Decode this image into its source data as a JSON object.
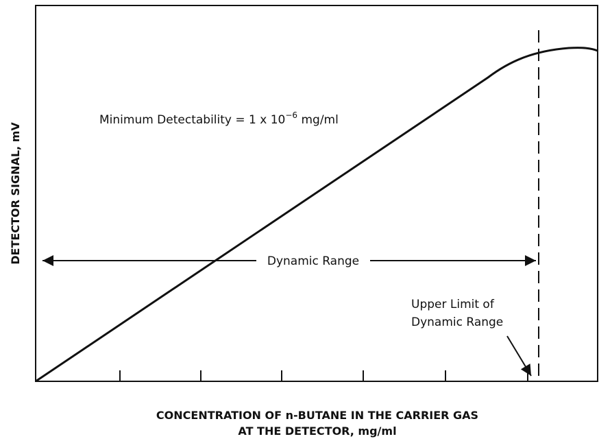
{
  "axes": {
    "y_label": "DETECTOR SIGNAL, mV",
    "x_label": [
      "CONCENTRATION OF n-BUTANE IN THE CARRIER GAS",
      "AT THE DETECTOR, mg/ml"
    ]
  },
  "annotations": {
    "detectability": {
      "text": "Minimum Detectability = 1 x 10",
      "exponent": "−6",
      "unit": " mg/ml"
    },
    "dynamic_range": "Dynamic Range",
    "upper_limit": [
      "Upper Limit of",
      "Dynamic Range"
    ]
  }
}
